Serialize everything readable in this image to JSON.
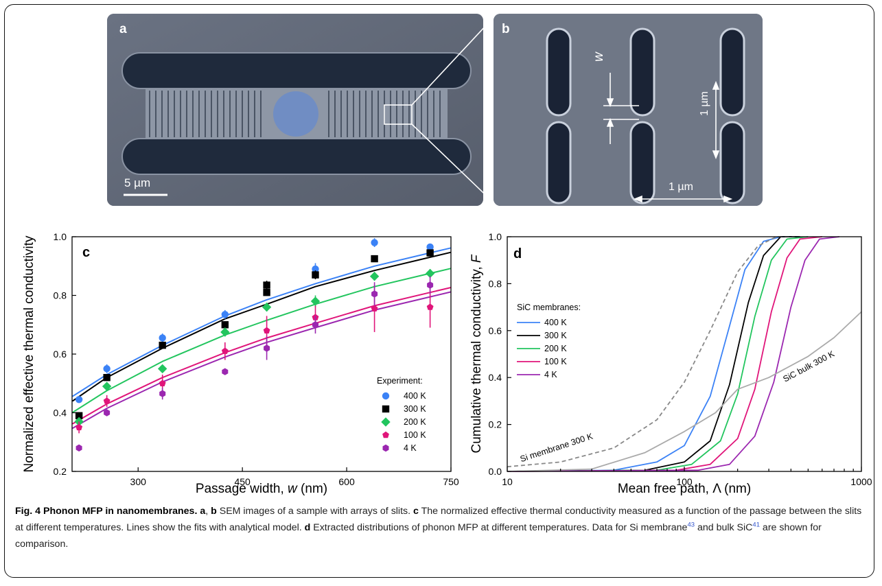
{
  "panels": {
    "a": {
      "letter": "a",
      "scale_bar": "5 µm"
    },
    "b": {
      "letter": "b",
      "w_label": "w",
      "vert_label": "1 µm",
      "horiz_label": "1 µm"
    }
  },
  "chart_data": [
    {
      "type": "scatter",
      "panel": "c",
      "xlabel_prefix": "Passage width, ",
      "xlabel_var": "w",
      "xlabel_suffix": " (nm)",
      "ylabel": "Normalized effective thermal conductivity",
      "xlim": [
        205,
        750
      ],
      "ylim": [
        0.2,
        1.0
      ],
      "xticks": [
        300,
        450,
        600,
        750
      ],
      "yticks": [
        0.2,
        0.4,
        0.6,
        0.8,
        1.0
      ],
      "legend_title": "Experiment:",
      "legend_position": "bottom-right",
      "x": [
        215,
        255,
        335,
        425,
        485,
        555,
        640,
        720
      ],
      "series": [
        {
          "name": "400 K",
          "color": "#3b82f6",
          "marker": "circle",
          "values": [
            0.445,
            0.55,
            0.655,
            0.735,
            0.81,
            0.89,
            0.98,
            0.965
          ],
          "errors": [
            0.01,
            0.015,
            0.015,
            0.015,
            0.01,
            0.02,
            0.015,
            0.01
          ],
          "fit": [
            0.47,
            0.53,
            0.63,
            0.73,
            0.785,
            0.84,
            0.9,
            0.945
          ]
        },
        {
          "name": "300 K",
          "color": "#000000",
          "marker": "square",
          "values": [
            0.39,
            0.52,
            0.63,
            0.7,
            0.835,
            0.87,
            0.925,
            0.945
          ],
          "errors": [
            0.01,
            0.01,
            0.01,
            0.01,
            0.015,
            0.015,
            0.01,
            0.01
          ],
          "extra": [
            null,
            null,
            null,
            null,
            0.81,
            null,
            null,
            null
          ],
          "fit": [
            0.455,
            0.52,
            0.62,
            0.72,
            0.77,
            0.83,
            0.885,
            0.93
          ]
        },
        {
          "name": "200 K",
          "color": "#22c55e",
          "marker": "diamond",
          "values": [
            0.37,
            0.49,
            0.55,
            0.675,
            0.76,
            0.78,
            0.865,
            0.875
          ],
          "errors": [
            0.01,
            0.01,
            0.01,
            0.015,
            0.015,
            0.02,
            0.015,
            0.015
          ],
          "fit": [
            0.415,
            0.475,
            0.575,
            0.665,
            0.715,
            0.77,
            0.83,
            0.875
          ]
        },
        {
          "name": "100 K",
          "color": "#e0157a",
          "marker": "pentagon",
          "values": [
            0.35,
            0.44,
            0.5,
            0.61,
            0.68,
            0.725,
            0.755,
            0.76
          ],
          "errors": [
            0.02,
            0.02,
            0.03,
            0.03,
            0.05,
            0.04,
            0.08,
            0.07
          ],
          "fit": [
            0.375,
            0.43,
            0.52,
            0.605,
            0.655,
            0.705,
            0.765,
            0.81
          ]
        },
        {
          "name": "4 K",
          "color": "#9b27b0",
          "marker": "hexagon",
          "values": [
            0.28,
            0.4,
            0.465,
            0.54,
            0.62,
            0.7,
            0.805,
            0.835
          ],
          "errors": [
            0.01,
            0.01,
            0.02,
            0.01,
            0.04,
            0.03,
            0.04,
            0.03
          ],
          "fit": [
            0.36,
            0.415,
            0.505,
            0.59,
            0.64,
            0.69,
            0.75,
            0.795
          ]
        }
      ]
    },
    {
      "type": "line",
      "panel": "d",
      "xscale": "log",
      "xlabel": "Mean free path, Λ (nm)",
      "ylabel_prefix": "Cumulative thermal conductivity, ",
      "ylabel_var": "F",
      "xlim": [
        10,
        1000
      ],
      "ylim": [
        0.0,
        1.0
      ],
      "xticks": [
        10,
        100,
        1000
      ],
      "yticks": [
        0.0,
        0.2,
        0.4,
        0.6,
        0.8,
        1.0
      ],
      "legend_title": "SiC membranes:",
      "legend_position": "center-left",
      "series": [
        {
          "name": "400 K",
          "color": "#3b82f6",
          "x": [
            10,
            40,
            70,
            100,
            140,
            180,
            220,
            280,
            350,
            450
          ],
          "values": [
            0.0,
            0.005,
            0.04,
            0.11,
            0.32,
            0.62,
            0.86,
            0.98,
            1.0,
            1.0
          ]
        },
        {
          "name": "300 K",
          "color": "#000000",
          "x": [
            10,
            60,
            100,
            140,
            180,
            230,
            280,
            350,
            450
          ],
          "values": [
            0.0,
            0.005,
            0.04,
            0.13,
            0.37,
            0.72,
            0.92,
            1.0,
            1.0
          ]
        },
        {
          "name": "200 K",
          "color": "#22c55e",
          "x": [
            10,
            70,
            110,
            160,
            200,
            250,
            310,
            380,
            500
          ],
          "values": [
            0.0,
            0.005,
            0.03,
            0.13,
            0.33,
            0.66,
            0.9,
            0.99,
            1.0
          ]
        },
        {
          "name": "100 K",
          "color": "#e0157a",
          "x": [
            10,
            90,
            140,
            200,
            250,
            310,
            380,
            450,
            600
          ],
          "values": [
            0.0,
            0.005,
            0.03,
            0.14,
            0.35,
            0.68,
            0.91,
            0.99,
            1.0
          ]
        },
        {
          "name": "4 K",
          "color": "#9b27b0",
          "x": [
            10,
            120,
            180,
            250,
            320,
            400,
            480,
            580,
            750
          ],
          "values": [
            0.0,
            0.005,
            0.03,
            0.15,
            0.38,
            0.7,
            0.9,
            0.99,
            1.0
          ]
        },
        {
          "name": "Si membrane 300 K",
          "color": "#888888",
          "dashed": true,
          "x": [
            10,
            20,
            40,
            70,
            100,
            140,
            200,
            260,
            330,
            420
          ],
          "values": [
            0.02,
            0.04,
            0.1,
            0.22,
            0.38,
            0.6,
            0.85,
            0.96,
            1.0,
            1.0
          ]
        },
        {
          "name": "SiC bulk 300 K",
          "color": "#aaaaaa",
          "dashed": false,
          "x": [
            10,
            30,
            60,
            100,
            150,
            200,
            300,
            500,
            700,
            1000
          ],
          "values": [
            0.0,
            0.01,
            0.08,
            0.17,
            0.25,
            0.35,
            0.4,
            0.49,
            0.57,
            0.68
          ]
        }
      ]
    }
  ],
  "caption": {
    "fig": "Fig. 4 Phonon MFP in nanomembranes.",
    "a": "a",
    "sep": ", ",
    "b": "b",
    "b_text": " SEM images of a sample with arrays of slits. ",
    "c": "c",
    "c_text": " The normalized effective thermal conductivity measured as a function of the passage between the slits at different temperatures. Lines show the fits with analytical model. ",
    "d": "d",
    "d_text": " Extracted distributions of phonon MFP at different temperatures. Data for Si membrane",
    "ref1": "43",
    "mid": " and bulk SiC",
    "ref2": "41",
    "end": " are shown for comparison."
  }
}
